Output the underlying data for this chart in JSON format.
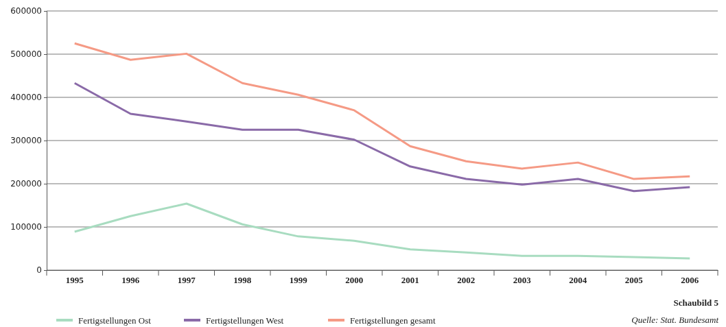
{
  "chart_data": {
    "type": "line",
    "categories": [
      "1995",
      "1996",
      "1997",
      "1998",
      "1999",
      "2000",
      "2001",
      "2002",
      "2003",
      "2004",
      "2005",
      "2006"
    ],
    "series": [
      {
        "name": "Fertigstellungen Ost",
        "color": "#a8dcc0",
        "values": [
          89000,
          125000,
          154000,
          106000,
          78000,
          68000,
          48000,
          41000,
          33000,
          33000,
          30000,
          27000
        ]
      },
      {
        "name": "Fertigstellungen West",
        "color": "#8a6aa8",
        "values": [
          433000,
          362000,
          344000,
          325000,
          325000,
          302000,
          240000,
          211000,
          198000,
          211000,
          183000,
          192000
        ]
      },
      {
        "name": "Fertigstellungen gesamt",
        "color": "#f59a85",
        "values": [
          525000,
          487000,
          501000,
          433000,
          406000,
          370000,
          287000,
          252000,
          235000,
          249000,
          211000,
          217000
        ]
      }
    ],
    "ylim": [
      0,
      600000
    ],
    "yticks": [
      0,
      100000,
      200000,
      300000,
      400000,
      500000,
      600000
    ],
    "grid": "y",
    "legend": "bottom",
    "marker": "none",
    "line_style": "solid",
    "annotations": [
      "Schaubild 5",
      "Quelle: Stat. Bundesamt"
    ]
  }
}
